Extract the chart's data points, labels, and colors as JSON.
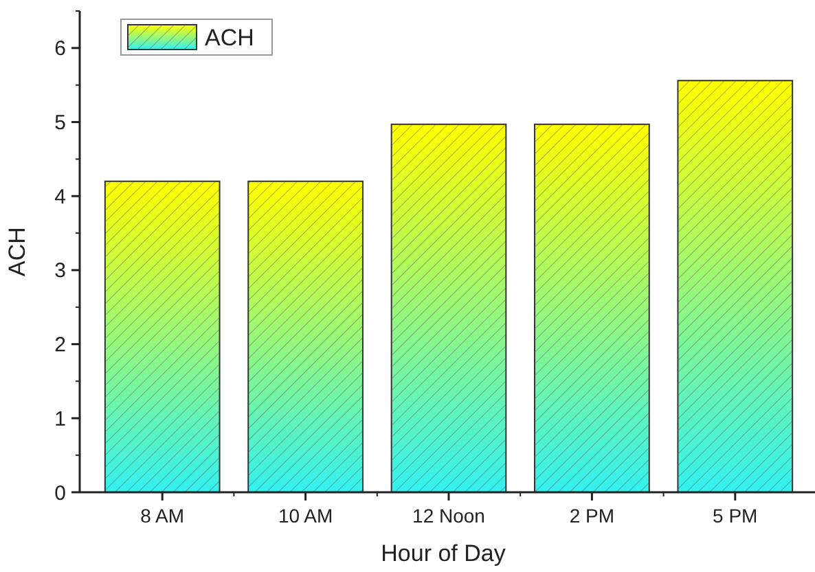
{
  "chart_data": {
    "type": "bar",
    "xlabel": "Hour of Day",
    "ylabel": "ACH",
    "categories": [
      "8 AM",
      "10 AM",
      "12 Noon",
      "2 PM",
      "5 PM"
    ],
    "series": [
      {
        "name": "ACH",
        "color": "#ffff00",
        "values": [
          4.2,
          4.2,
          4.97,
          4.97,
          5.56
        ]
      }
    ],
    "ylim": [
      0,
      6.5
    ],
    "yticks": [
      0,
      1,
      2,
      3,
      4,
      5,
      6
    ],
    "grid": false,
    "legend": "top left"
  }
}
